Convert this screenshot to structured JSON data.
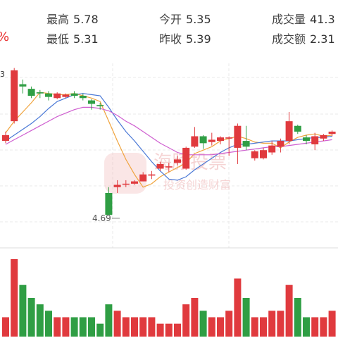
{
  "quote": {
    "high_label": "最高",
    "high_value": "5.78",
    "low_label": "最低",
    "low_value": "5.31",
    "open_label": "今开",
    "open_value": "5.35",
    "prev_close_label": "昨收",
    "prev_close_value": "5.39",
    "volume_label": "成交量",
    "volume_value": "41.3",
    "amount_label": "成交额",
    "amount_value": "2.31",
    "change_fragment": "%"
  },
  "chart": {
    "low_marker": "4.69",
    "left_edge_label": "3",
    "watermark": "海豚投票",
    "watermark_sub": "投资创造财富"
  },
  "colors": {
    "up": "#e03a3e",
    "down": "#2f9e44",
    "ma5": "#f0a33c",
    "ma10": "#4a78d6",
    "ma20": "#cf5fd0",
    "grid": "#e8e8e8"
  },
  "chart_data": {
    "type": "candlestick",
    "candles": [
      {
        "open": 5.33,
        "close": 5.38,
        "high": 5.41,
        "low": 5.31
      },
      {
        "open": 5.5,
        "close": 5.94,
        "high": 5.96,
        "low": 5.48
      },
      {
        "open": 5.82,
        "close": 5.8,
        "high": 5.86,
        "low": 5.74
      },
      {
        "open": 5.78,
        "close": 5.72,
        "high": 5.8,
        "low": 5.7
      },
      {
        "open": 5.75,
        "close": 5.74,
        "high": 5.77,
        "low": 5.7
      },
      {
        "open": 5.74,
        "close": 5.71,
        "high": 5.76,
        "low": 5.68
      },
      {
        "open": 5.7,
        "close": 5.74,
        "high": 5.75,
        "low": 5.69
      },
      {
        "open": 5.71,
        "close": 5.73,
        "high": 5.74,
        "low": 5.7
      },
      {
        "open": 5.74,
        "close": 5.72,
        "high": 5.76,
        "low": 5.7
      },
      {
        "open": 5.72,
        "close": 5.7,
        "high": 5.74,
        "low": 5.68
      },
      {
        "open": 5.68,
        "close": 5.65,
        "high": 5.69,
        "low": 5.6
      },
      {
        "open": 5.64,
        "close": 5.63,
        "high": 5.66,
        "low": 5.6
      },
      {
        "open": 4.88,
        "close": 4.69,
        "high": 4.93,
        "low": 4.69
      },
      {
        "open": 4.93,
        "close": 4.95,
        "high": 4.99,
        "low": 4.88
      },
      {
        "open": 4.96,
        "close": 4.96,
        "high": 4.99,
        "low": 4.93
      },
      {
        "open": 4.96,
        "close": 4.98,
        "high": 4.99,
        "low": 4.95
      },
      {
        "open": 4.98,
        "close": 5.04,
        "high": 5.06,
        "low": 4.98
      },
      {
        "open": 5.03,
        "close": 5.04,
        "high": 5.07,
        "low": 5.0
      },
      {
        "open": 5.09,
        "close": 5.13,
        "high": 5.15,
        "low": 5.07
      },
      {
        "open": 5.1,
        "close": 5.11,
        "high": 5.14,
        "low": 5.06
      },
      {
        "open": 5.14,
        "close": 5.17,
        "high": 5.2,
        "low": 5.12
      },
      {
        "open": 5.09,
        "close": 5.27,
        "high": 5.28,
        "low": 5.08
      },
      {
        "open": 5.28,
        "close": 5.37,
        "high": 5.45,
        "low": 5.27
      },
      {
        "open": 5.37,
        "close": 5.31,
        "high": 5.38,
        "low": 5.26
      },
      {
        "open": 5.32,
        "close": 5.34,
        "high": 5.4,
        "low": 5.29
      },
      {
        "open": 5.33,
        "close": 5.36,
        "high": 5.37,
        "low": 5.3
      },
      {
        "open": 5.35,
        "close": 5.36,
        "high": 5.37,
        "low": 5.2
      },
      {
        "open": 5.27,
        "close": 5.46,
        "high": 5.48,
        "low": 5.13
      },
      {
        "open": 5.33,
        "close": 5.28,
        "high": 5.46,
        "low": 5.25
      },
      {
        "open": 5.18,
        "close": 5.24,
        "high": 5.25,
        "low": 5.16
      },
      {
        "open": 5.18,
        "close": 5.25,
        "high": 5.27,
        "low": 5.17
      },
      {
        "open": 5.23,
        "close": 5.29,
        "high": 5.33,
        "low": 5.21
      },
      {
        "open": 5.28,
        "close": 5.33,
        "high": 5.35,
        "low": 5.23
      },
      {
        "open": 5.33,
        "close": 5.5,
        "high": 5.58,
        "low": 5.3
      },
      {
        "open": 5.46,
        "close": 5.41,
        "high": 5.47,
        "low": 5.39
      },
      {
        "open": 5.36,
        "close": 5.33,
        "high": 5.38,
        "low": 5.3
      },
      {
        "open": 5.3,
        "close": 5.37,
        "high": 5.4,
        "low": 5.25
      },
      {
        "open": 5.35,
        "close": 5.38,
        "high": 5.39,
        "low": 5.33
      },
      {
        "open": 5.39,
        "close": 5.41,
        "high": 5.42,
        "low": 5.37
      }
    ],
    "ma5": [
      5.4,
      5.5,
      5.58,
      5.66,
      5.75,
      5.74,
      5.73,
      5.73,
      5.74,
      5.72,
      5.7,
      5.67,
      5.5,
      5.33,
      5.17,
      5.04,
      4.93,
      4.96,
      5.02,
      5.06,
      5.1,
      5.14,
      5.22,
      5.25,
      5.28,
      5.33,
      5.35,
      5.37,
      5.35,
      5.32,
      5.31,
      5.31,
      5.27,
      5.32,
      5.36,
      5.38,
      5.39,
      5.37,
      5.38
    ],
    "ma10": [
      5.33,
      5.38,
      5.43,
      5.48,
      5.54,
      5.61,
      5.67,
      5.7,
      5.73,
      5.74,
      5.73,
      5.72,
      5.62,
      5.51,
      5.41,
      5.33,
      5.24,
      5.15,
      5.07,
      5.0,
      4.99,
      5.02,
      5.08,
      5.13,
      5.18,
      5.23,
      5.27,
      5.3,
      5.3,
      5.31,
      5.32,
      5.33,
      5.33,
      5.33,
      5.34,
      5.35,
      5.36,
      5.36,
      5.37
    ],
    "ma20": [
      5.3,
      5.34,
      5.38,
      5.42,
      5.46,
      5.5,
      5.54,
      5.57,
      5.6,
      5.62,
      5.62,
      5.61,
      5.59,
      5.55,
      5.5,
      5.46,
      5.41,
      5.36,
      5.31,
      5.27,
      5.23,
      5.21,
      5.21,
      5.21,
      5.21,
      5.22,
      5.23,
      5.24,
      5.25,
      5.26,
      5.27,
      5.28,
      5.28,
      5.29,
      5.3,
      5.31,
      5.32,
      5.33,
      5.34
    ],
    "volume": [
      3,
      12,
      8,
      6,
      5,
      4,
      3,
      3,
      3,
      3,
      3,
      2,
      5,
      4,
      3,
      3,
      3,
      3,
      2,
      2,
      2,
      5,
      6,
      4,
      3,
      3,
      4,
      9,
      6,
      3,
      3,
      4,
      4,
      8,
      6,
      3,
      3,
      3,
      4
    ],
    "ylim": [
      4.6,
      6.0
    ]
  }
}
